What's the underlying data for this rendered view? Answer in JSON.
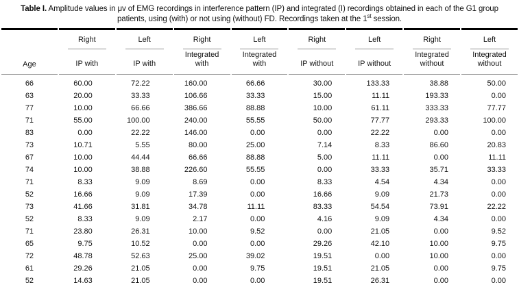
{
  "title": {
    "bold": "Table I.",
    "text_a": " Amplitude values in μv of EMG recordings in interference pattern (IP) and integrated (I) recordings obtained in each of the G1 group patients, using (with) or not using (without) FD. Recordings taken at the 1",
    "sup": "st",
    "text_b": " session."
  },
  "table": {
    "group_headers": [
      "",
      "Right",
      "Left",
      "Right",
      "Left",
      "Right",
      "Left",
      "Right",
      "Left"
    ],
    "column_headers": [
      "Age",
      "IP with",
      "IP with",
      "Integrated\nwith",
      "Integrated\nwith",
      "IP without",
      "IP without",
      "Integrated\nwithout",
      "Integrated\nwithout"
    ],
    "rows": [
      [
        "66",
        "60.00",
        "72.22",
        "160.00",
        "66.66",
        "30.00",
        "133.33",
        "38.88",
        "50.00"
      ],
      [
        "63",
        "20.00",
        "33.33",
        "106.66",
        "33.33",
        "15.00",
        "11.11",
        "193.33",
        "0.00"
      ],
      [
        "77",
        "10.00",
        "66.66",
        "386.66",
        "88.88",
        "10.00",
        "61.11",
        "333.33",
        "77.77"
      ],
      [
        "71",
        "55.00",
        "100.00",
        "240.00",
        "55.55",
        "50.00",
        "77.77",
        "293.33",
        "100.00"
      ],
      [
        "83",
        "0.00",
        "22.22",
        "146.00",
        "0.00",
        "0.00",
        "22.22",
        "0.00",
        "0.00"
      ],
      [
        "73",
        "10.71",
        "5.55",
        "80.00",
        "25.00",
        "7.14",
        "8.33",
        "86.60",
        "20.83"
      ],
      [
        "67",
        "10.00",
        "44.44",
        "66.66",
        "88.88",
        "5.00",
        "11.11",
        "0.00",
        "11.11"
      ],
      [
        "74",
        "10.00",
        "38.88",
        "226.60",
        "55.55",
        "0.00",
        "33.33",
        "35.71",
        "33.33"
      ],
      [
        "71",
        "8.33",
        "9.09",
        "8.69",
        "0.00",
        "8.33",
        "4.54",
        "4.34",
        "0.00"
      ],
      [
        "52",
        "16.66",
        "9.09",
        "17.39",
        "0.00",
        "16.66",
        "9.09",
        "21.73",
        "0.00"
      ],
      [
        "73",
        "41.66",
        "31.81",
        "34.78",
        "11.11",
        "83.33",
        "54.54",
        "73.91",
        "22.22"
      ],
      [
        "52",
        "8.33",
        "9.09",
        "2.17",
        "0.00",
        "4.16",
        "9.09",
        "4.34",
        "0.00"
      ],
      [
        "71",
        "23.80",
        "26.31",
        "10.00",
        "9.52",
        "0.00",
        "21.05",
        "0.00",
        "9.52"
      ],
      [
        "65",
        "9.75",
        "10.52",
        "0.00",
        "0.00",
        "29.26",
        "42.10",
        "10.00",
        "9.75"
      ],
      [
        "72",
        "48.78",
        "52.63",
        "25.00",
        "39.02",
        "19.51",
        "0.00",
        "10.00",
        "0.00"
      ],
      [
        "61",
        "29.26",
        "21.05",
        "0.00",
        "9.75",
        "19.51",
        "21.05",
        "0.00",
        "9.75"
      ],
      [
        "52",
        "14.63",
        "21.05",
        "0.00",
        "0.00",
        "19.51",
        "26.31",
        "0.00",
        "0.00"
      ]
    ]
  },
  "colors": {
    "thick_rule": "#000000",
    "thin_rule": "#8f8f8f",
    "text": "#111111",
    "background": "#ffffff"
  }
}
